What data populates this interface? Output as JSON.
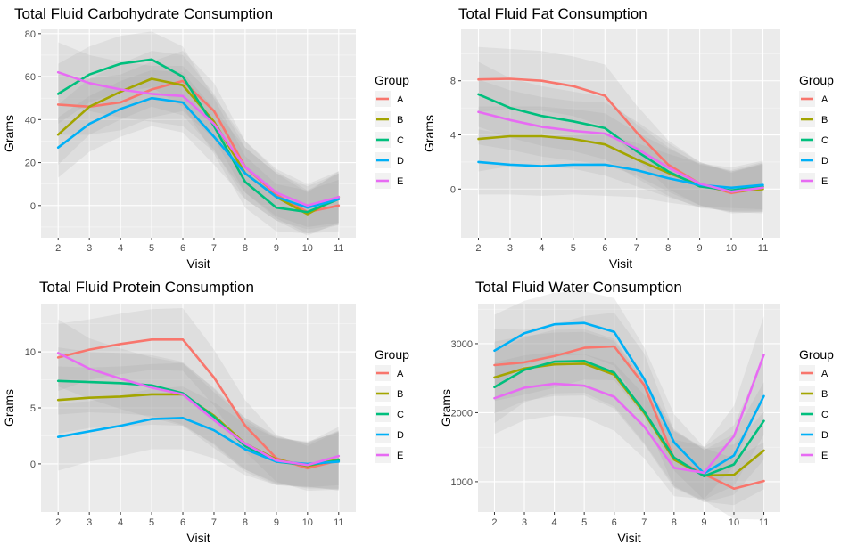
{
  "chart_data": [
    {
      "type": "line",
      "title": "Total Fluid Carbohydrate Consumption",
      "xlabel": "Visit",
      "ylabel": "Grams",
      "x": [
        2,
        3,
        4,
        5,
        6,
        7,
        8,
        9,
        10,
        11
      ],
      "ylim": [
        -15,
        82
      ],
      "yticks": [
        0,
        20,
        40,
        60,
        80
      ],
      "legend_title": "Group",
      "series": [
        {
          "name": "A",
          "values": [
            47,
            46,
            48,
            54,
            58,
            44,
            18,
            5,
            -3,
            0
          ]
        },
        {
          "name": "B",
          "values": [
            33,
            46,
            53,
            59,
            56,
            39,
            15,
            4,
            -4,
            4
          ]
        },
        {
          "name": "C",
          "values": [
            52,
            61,
            66,
            68,
            60,
            37,
            11,
            -1,
            -3,
            3
          ]
        },
        {
          "name": "D",
          "values": [
            27,
            38,
            45,
            50,
            48,
            32,
            15,
            4,
            -1,
            3
          ]
        },
        {
          "name": "E",
          "values": [
            62,
            57,
            54,
            52,
            51,
            38,
            18,
            6,
            0,
            4
          ]
        }
      ],
      "band_halfwidth": [
        14,
        13,
        13,
        13,
        14,
        13,
        12,
        11,
        10,
        12
      ]
    },
    {
      "type": "line",
      "title": "Total Fluid Fat Consumption",
      "xlabel": "Visit",
      "ylabel": "Grams",
      "x": [
        2,
        3,
        4,
        5,
        6,
        7,
        8,
        9,
        10,
        11
      ],
      "ylim": [
        -3.6,
        11.8
      ],
      "yticks": [
        0,
        4,
        8
      ],
      "legend_title": "Group",
      "series": [
        {
          "name": "A",
          "values": [
            8.1,
            8.15,
            8.0,
            7.6,
            6.9,
            4.2,
            1.8,
            0.4,
            -0.3,
            0.1
          ]
        },
        {
          "name": "B",
          "values": [
            3.7,
            3.9,
            3.9,
            3.7,
            3.3,
            2.2,
            1.2,
            0.3,
            -0.2,
            0.0
          ]
        },
        {
          "name": "C",
          "values": [
            7.0,
            6.0,
            5.4,
            5.0,
            4.5,
            2.8,
            1.3,
            0.2,
            -0.1,
            0.2
          ]
        },
        {
          "name": "D",
          "values": [
            2.0,
            1.8,
            1.7,
            1.8,
            1.8,
            1.4,
            0.8,
            0.3,
            0.1,
            0.3
          ]
        },
        {
          "name": "E",
          "values": [
            5.7,
            5.1,
            4.6,
            4.3,
            4.1,
            3.0,
            1.6,
            0.4,
            -0.2,
            0.1
          ]
        }
      ],
      "band_halfwidth": [
        2.4,
        2.2,
        2.2,
        2.2,
        2.3,
        2.0,
        1.8,
        1.6,
        1.5,
        1.8
      ]
    },
    {
      "type": "line",
      "title": "Total Fluid Protein Consumption",
      "xlabel": "Visit",
      "ylabel": "Grams",
      "x": [
        2,
        3,
        4,
        5,
        6,
        7,
        8,
        9,
        10,
        11
      ],
      "ylim": [
        -4.3,
        14.3
      ],
      "yticks": [
        0,
        5,
        10
      ],
      "legend_title": "Group",
      "series": [
        {
          "name": "A",
          "values": [
            9.5,
            10.2,
            10.7,
            11.1,
            11.1,
            7.7,
            3.4,
            0.5,
            -0.4,
            0.3
          ]
        },
        {
          "name": "B",
          "values": [
            5.7,
            5.9,
            6.0,
            6.2,
            6.2,
            4.3,
            1.8,
            0.4,
            -0.2,
            0.4
          ]
        },
        {
          "name": "C",
          "values": [
            7.4,
            7.3,
            7.2,
            7.0,
            6.3,
            4.2,
            1.6,
            0.2,
            -0.1,
            0.3
          ]
        },
        {
          "name": "D",
          "values": [
            2.4,
            2.9,
            3.4,
            4.0,
            4.1,
            3.0,
            1.3,
            0.2,
            0.0,
            0.2
          ]
        },
        {
          "name": "E",
          "values": [
            9.9,
            8.5,
            7.6,
            6.8,
            6.2,
            3.9,
            1.8,
            0.3,
            -0.1,
            0.7
          ]
        }
      ],
      "band_halfwidth": [
        3.0,
        2.7,
        2.7,
        2.7,
        2.8,
        2.5,
        2.3,
        2.1,
        2.0,
        2.6
      ]
    },
    {
      "type": "line",
      "title": "Total Fluid Water Consumption",
      "xlabel": "Visit",
      "ylabel": "Grams",
      "x": [
        2,
        3,
        4,
        5,
        6,
        7,
        8,
        9,
        10,
        11
      ],
      "ylim": [
        560,
        3580
      ],
      "yticks": [
        1000,
        2000,
        3000
      ],
      "legend_title": "Group",
      "series": [
        {
          "name": "A",
          "values": [
            2690,
            2730,
            2820,
            2940,
            2960,
            2400,
            1330,
            1110,
            900,
            1010
          ]
        },
        {
          "name": "B",
          "values": [
            2510,
            2640,
            2700,
            2710,
            2550,
            2000,
            1320,
            1090,
            1100,
            1450
          ]
        },
        {
          "name": "C",
          "values": [
            2370,
            2620,
            2740,
            2750,
            2580,
            2020,
            1350,
            1080,
            1250,
            1880
          ]
        },
        {
          "name": "D",
          "values": [
            2900,
            3150,
            3280,
            3300,
            3170,
            2490,
            1570,
            1120,
            1380,
            2240
          ]
        },
        {
          "name": "E",
          "values": [
            2210,
            2360,
            2420,
            2390,
            2230,
            1800,
            1200,
            1130,
            1660,
            2840
          ]
        }
      ],
      "band_halfwidth": [
        520,
        470,
        460,
        460,
        490,
        460,
        410,
        380,
        440,
        560
      ]
    }
  ],
  "legend_colors": {
    "A": "#F8766D",
    "B": "#A3A500",
    "C": "#00BF7D",
    "D": "#00B0F6",
    "E": "#E76BF3"
  }
}
